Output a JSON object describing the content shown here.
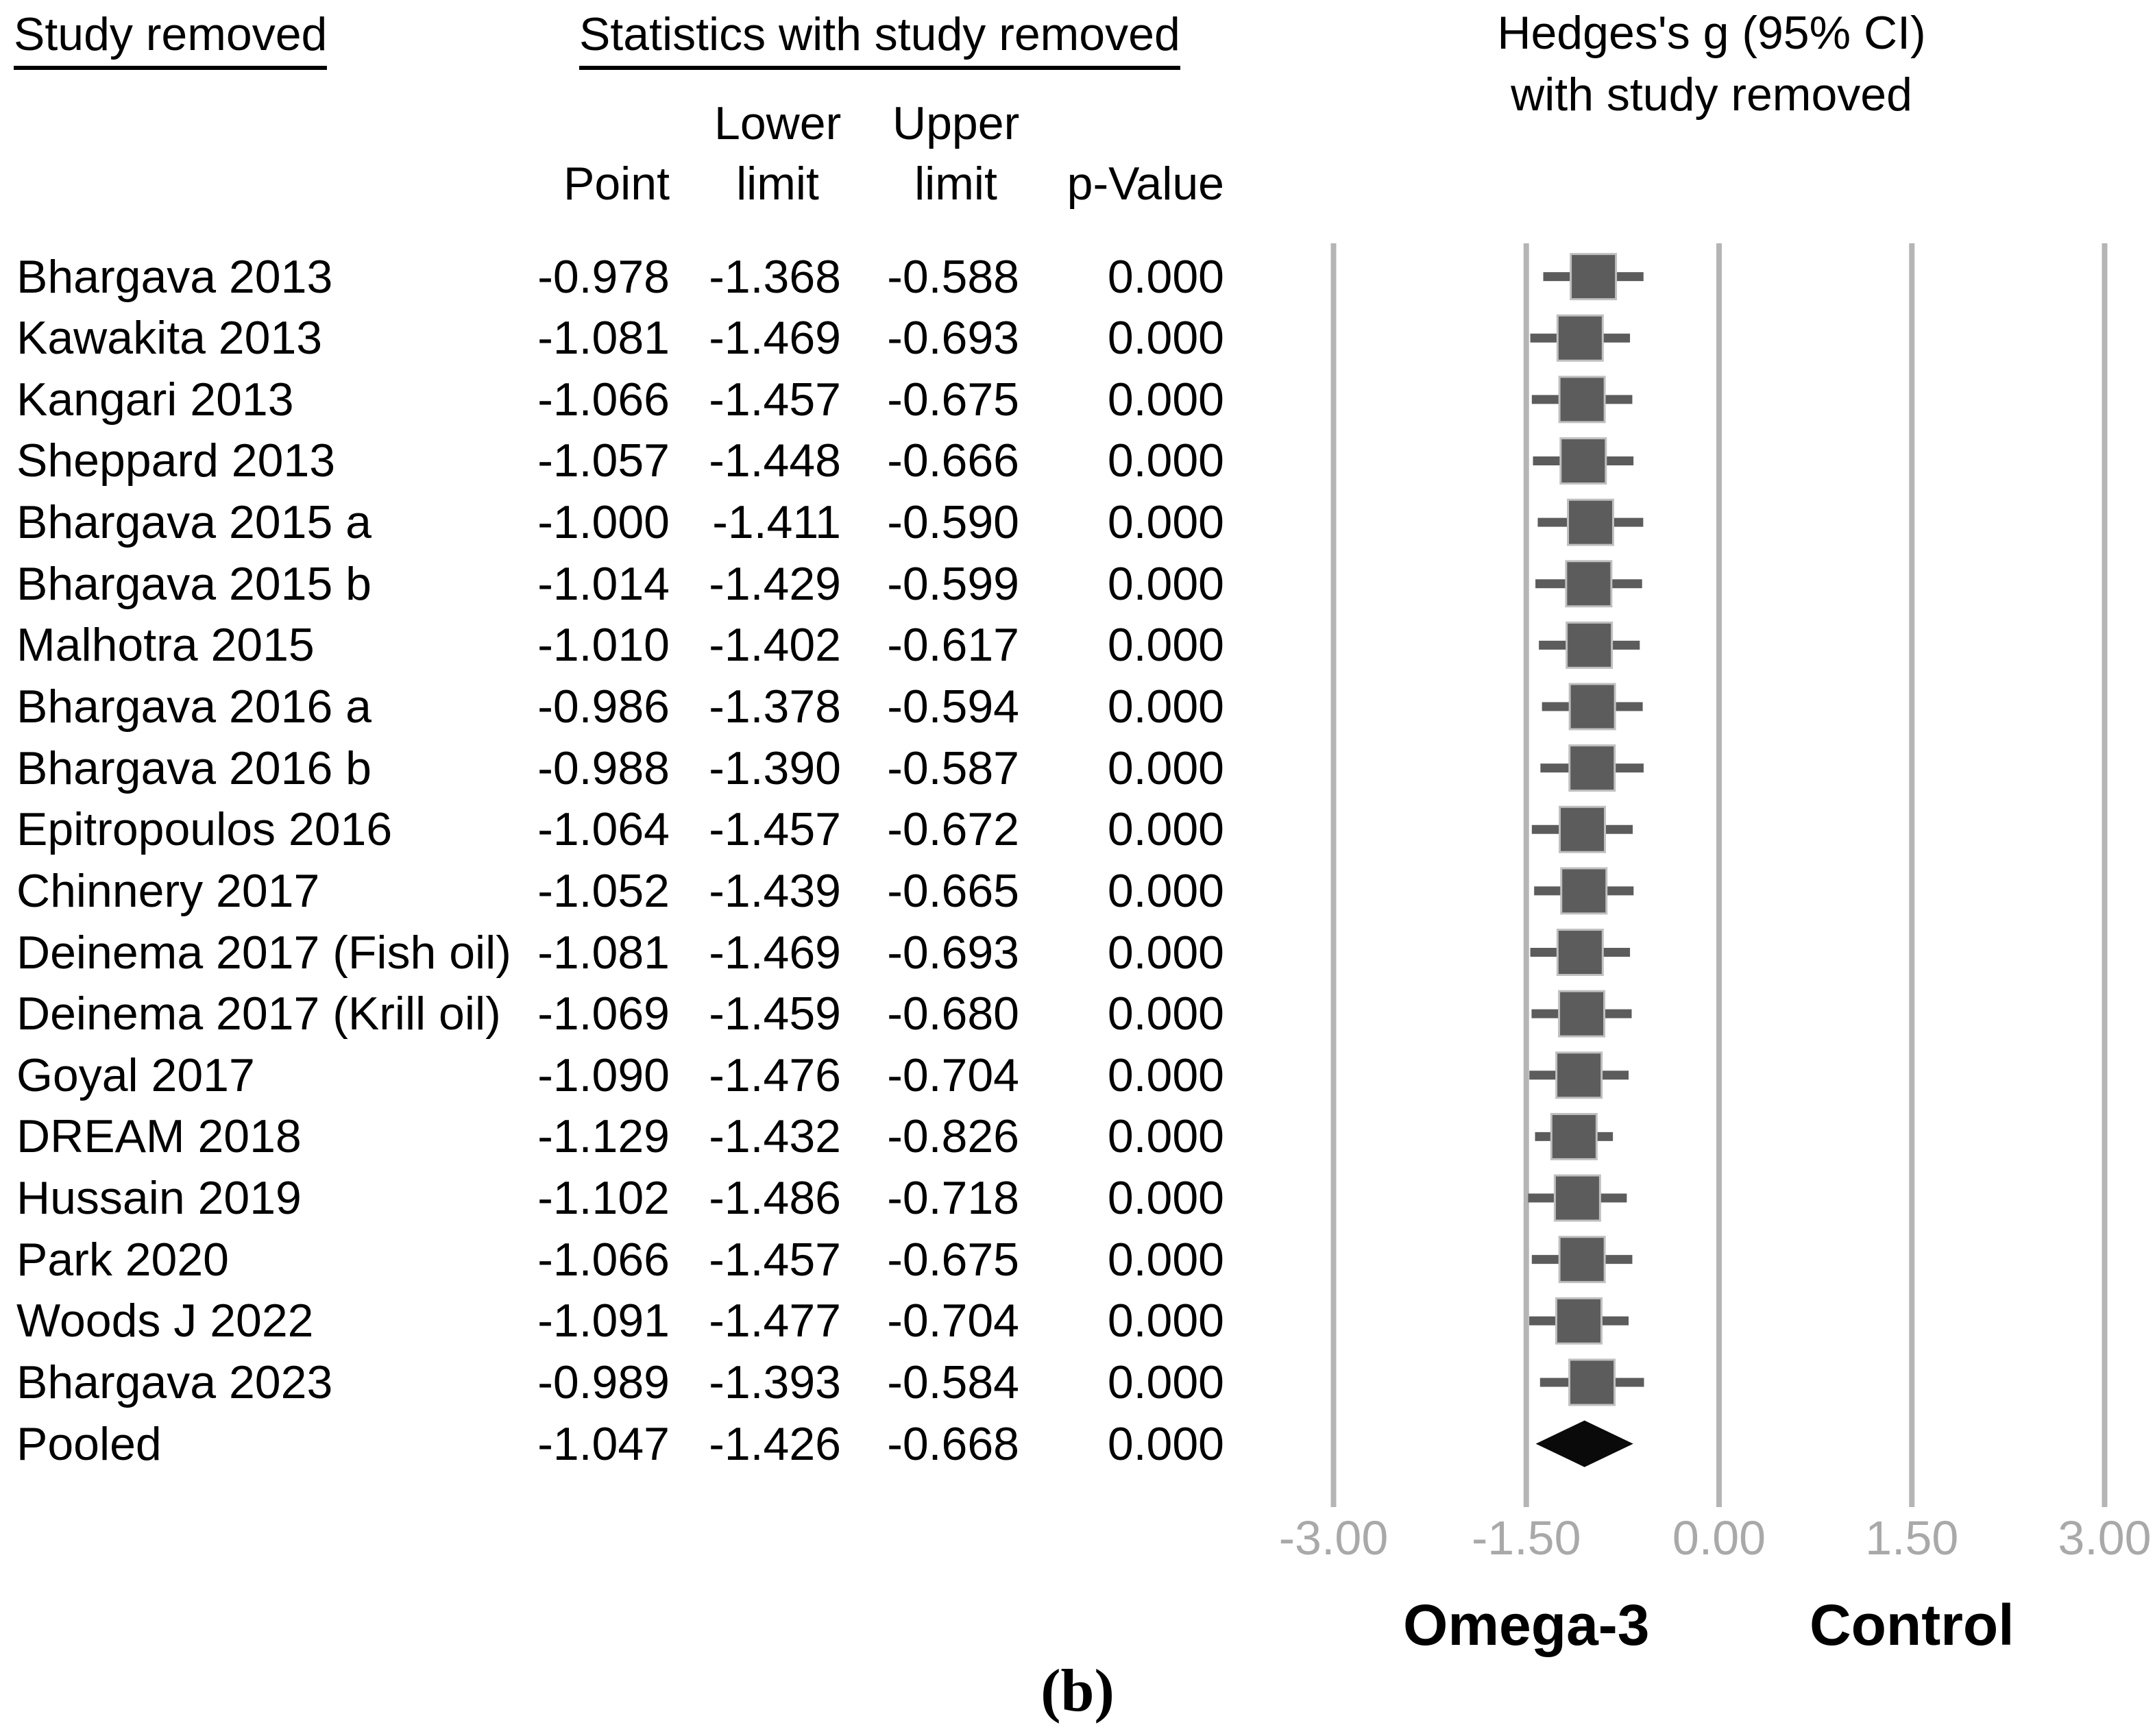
{
  "table": {
    "study_col_header": "Study removed",
    "stats_col_header": "Statistics with study removed",
    "subheaders": {
      "point": "Point",
      "lower_line1": "Lower",
      "lower_line2": "limit",
      "upper_line1": "Upper",
      "upper_line2": "limit",
      "p_value": "p-Value"
    }
  },
  "plot": {
    "title_line1": "Hedges's g (95% CI)",
    "title_line2": "with study removed",
    "group_label_left": "Omega-3",
    "group_label_right": "Control"
  },
  "figure_caption": "(b)",
  "colors": {
    "text": "#000000",
    "marker": "#5c5c5c",
    "marker_border": "#c0c0c0",
    "whisker": "#5c5c5c",
    "diamond": "#0a0a0a",
    "gridline": "#b5b5b5",
    "tick_label": "#a9a9a9"
  },
  "chart_data": {
    "type": "scatter",
    "variant": "forest-plot-leave-one-out-sensitivity",
    "title": "Hedges's g (95% CI) with study removed",
    "xlabel": "Hedges's g",
    "xlim": [
      -3,
      3
    ],
    "xticks": [
      -3,
      -1.5,
      0,
      1.5,
      3
    ],
    "xtick_labels": [
      "-3.00",
      "-1.50",
      "0.00",
      "1.50",
      "3.00"
    ],
    "grid": true,
    "legend_position": "none",
    "favours_labels": [
      "Omega-3",
      "Control"
    ],
    "columns": [
      "Study removed",
      "Point",
      "Lower limit",
      "Upper limit",
      "p-Value"
    ],
    "studies": [
      {
        "label": "Bhargava 2013",
        "point": -0.978,
        "lower": -1.368,
        "upper": -0.588,
        "p": "0.000",
        "marker": "square"
      },
      {
        "label": "Kawakita 2013",
        "point": -1.081,
        "lower": -1.469,
        "upper": -0.693,
        "p": "0.000",
        "marker": "square"
      },
      {
        "label": "Kangari 2013",
        "point": -1.066,
        "lower": -1.457,
        "upper": -0.675,
        "p": "0.000",
        "marker": "square"
      },
      {
        "label": "Sheppard 2013",
        "point": -1.057,
        "lower": -1.448,
        "upper": -0.666,
        "p": "0.000",
        "marker": "square"
      },
      {
        "label": "Bhargava 2015 a",
        "point": -1.0,
        "lower": -1.411,
        "upper": -0.59,
        "p": "0.000",
        "marker": "square"
      },
      {
        "label": "Bhargava 2015 b",
        "point": -1.014,
        "lower": -1.429,
        "upper": -0.599,
        "p": "0.000",
        "marker": "square"
      },
      {
        "label": "Malhotra 2015",
        "point": -1.01,
        "lower": -1.402,
        "upper": -0.617,
        "p": "0.000",
        "marker": "square"
      },
      {
        "label": "Bhargava 2016 a",
        "point": -0.986,
        "lower": -1.378,
        "upper": -0.594,
        "p": "0.000",
        "marker": "square"
      },
      {
        "label": "Bhargava 2016 b",
        "point": -0.988,
        "lower": -1.39,
        "upper": -0.587,
        "p": "0.000",
        "marker": "square"
      },
      {
        "label": "Epitropoulos 2016",
        "point": -1.064,
        "lower": -1.457,
        "upper": -0.672,
        "p": "0.000",
        "marker": "square"
      },
      {
        "label": "Chinnery 2017",
        "point": -1.052,
        "lower": -1.439,
        "upper": -0.665,
        "p": "0.000",
        "marker": "square"
      },
      {
        "label": "Deinema 2017 (Fish oil)",
        "point": -1.081,
        "lower": -1.469,
        "upper": -0.693,
        "p": "0.000",
        "marker": "square"
      },
      {
        "label": "Deinema 2017 (Krill oil)",
        "point": -1.069,
        "lower": -1.459,
        "upper": -0.68,
        "p": "0.000",
        "marker": "square"
      },
      {
        "label": "Goyal 2017",
        "point": -1.09,
        "lower": -1.476,
        "upper": -0.704,
        "p": "0.000",
        "marker": "square"
      },
      {
        "label": "DREAM 2018",
        "point": -1.129,
        "lower": -1.432,
        "upper": -0.826,
        "p": "0.000",
        "marker": "square"
      },
      {
        "label": "Hussain 2019",
        "point": -1.102,
        "lower": -1.486,
        "upper": -0.718,
        "p": "0.000",
        "marker": "square"
      },
      {
        "label": "Park 2020",
        "point": -1.066,
        "lower": -1.457,
        "upper": -0.675,
        "p": "0.000",
        "marker": "square"
      },
      {
        "label": "Woods J 2022",
        "point": -1.091,
        "lower": -1.477,
        "upper": -0.704,
        "p": "0.000",
        "marker": "square"
      },
      {
        "label": "Bhargava 2023",
        "point": -0.989,
        "lower": -1.393,
        "upper": -0.584,
        "p": "0.000",
        "marker": "square"
      },
      {
        "label": "Pooled",
        "point": -1.047,
        "lower": -1.426,
        "upper": -0.668,
        "p": "0.000",
        "marker": "diamond"
      }
    ]
  }
}
